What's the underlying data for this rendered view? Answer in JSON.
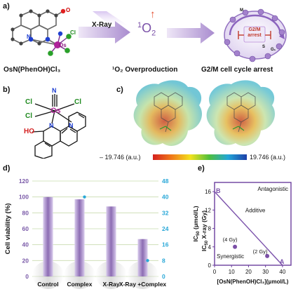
{
  "panel_a": {
    "label": "a)",
    "compound_caption": "OsN(PhenOH)Cl₃",
    "atom_labels": {
      "O": "O",
      "N": "N",
      "Cl": "Cl",
      "Os": "Os"
    },
    "xray_label": "X-Ray",
    "singlet_oxygen": {
      "sup": "1",
      "base": "O",
      "sub": "2"
    },
    "up_arrow": "↑",
    "overproduction_caption": "¹O₂  Overproduction",
    "cycle": {
      "arrest_label": "G2/M\narrest",
      "phase_labels": [
        "M",
        "S",
        "G₁"
      ]
    },
    "arrest_caption": "G2/M cell cycle arrest"
  },
  "panel_b": {
    "label": "b)",
    "atoms": {
      "n_top": "N",
      "cl_ul": "Cl",
      "cl_ur": "Cl",
      "cl_l": "Cl",
      "os": "Os",
      "n_left": "N",
      "n_right": "N",
      "ho": "HO"
    }
  },
  "panel_c": {
    "label": "c)",
    "scale_min": "– 19.746 (a.u.)",
    "scale_max": "19.746 (a.u.)"
  },
  "panel_d": {
    "label": "d)",
    "chart_data": {
      "type": "bar",
      "categories": [
        "Control",
        "Complex",
        "X-Ray",
        "X-Ray +Complex"
      ],
      "series": [
        {
          "name": "Cell viability (%)",
          "axis": "left",
          "values": [
            100,
            97,
            88,
            47
          ]
        },
        {
          "name": "Complex",
          "axis": "right",
          "values": [
            null,
            40,
            null,
            8
          ]
        }
      ],
      "ylabel": "Cell viability (%)",
      "ylim": [
        0,
        120
      ],
      "yticks": [
        "0",
        "20",
        "40",
        "60",
        "80",
        "100",
        "120"
      ],
      "y2lim": [
        0,
        48
      ],
      "y2ticks": [
        "0",
        "8",
        "16",
        "24",
        "32",
        "40",
        "48"
      ],
      "grid": true,
      "colors": {
        "bar": "#8c6cb3",
        "left_axis": "#7a5aa8",
        "right_axis": "#2aa8d8",
        "grid": "#c8dcae"
      }
    }
  },
  "panel_e": {
    "label": "e)",
    "chart_data": {
      "type": "scatter",
      "ylabel": "IC50 X-ray (Gy)",
      "ylabel_parts": {
        "ic": "IC",
        "sub": "50",
        "rest": "X-ray  (Gy)"
      },
      "xlabel": "[OsN(PhenOH)Cl₃](μmol/L)",
      "secondary_label": "IC50 (μmol/L)",
      "secondary_parts": {
        "ic": "IC",
        "sub": "50",
        "rest": "(μmol/L)"
      },
      "xlim": [
        0,
        45
      ],
      "ylim": [
        0,
        18
      ],
      "xticks": [
        "0",
        "10",
        "20",
        "30",
        "40"
      ],
      "yticks": [
        "0",
        "4",
        "8",
        "12",
        "16"
      ],
      "line": [
        [
          0,
          16
        ],
        [
          40,
          0
        ]
      ],
      "end_labels": {
        "B": "B",
        "A": "A"
      },
      "points": [
        {
          "x": 12,
          "y": 4,
          "label": "(4 Gy)"
        },
        {
          "x": 31,
          "y": 2,
          "label": "(2 Gy)"
        }
      ],
      "regions": {
        "antagonistic": "Antagonistic",
        "additive": "Additive",
        "synergistic": "Synergistic"
      },
      "colors": {
        "axis": "#6b3f9e",
        "line": "#7b52ab",
        "point": "#7b4fa6"
      }
    }
  }
}
